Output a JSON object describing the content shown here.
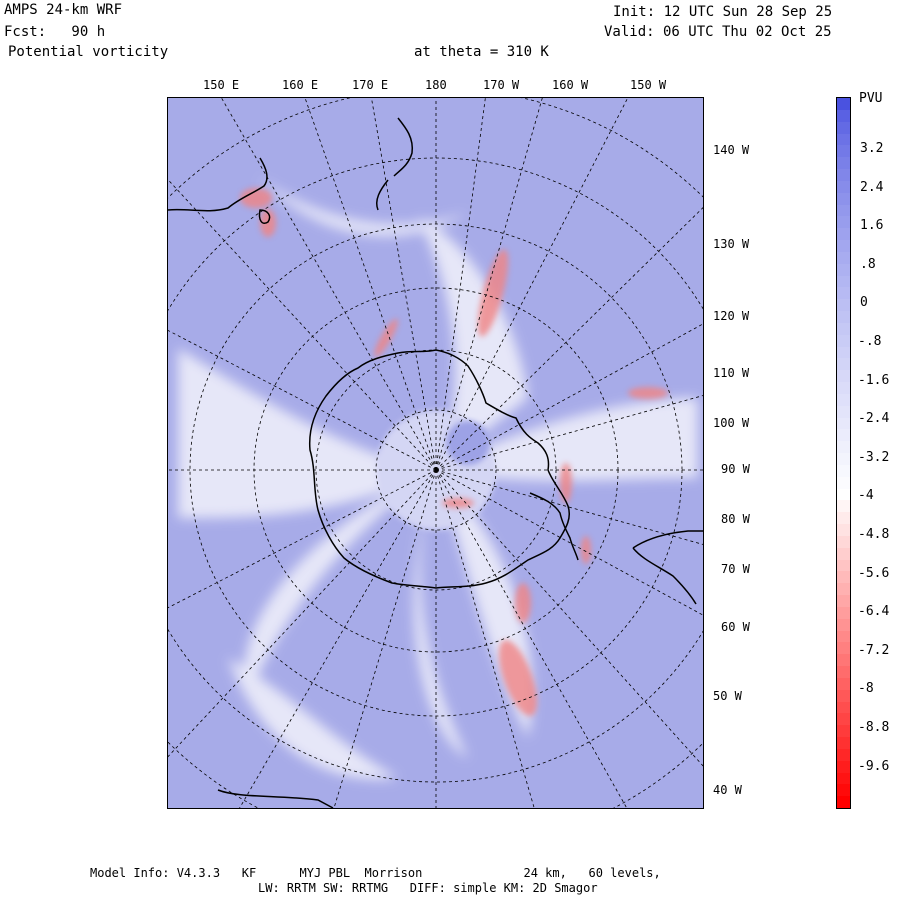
{
  "header": {
    "model": "AMPS 24-km WRF",
    "fcst": "Fcst:   90 h",
    "field": "Potential vorticity",
    "level": "at theta = 310 K",
    "init": "Init: 12 UTC Sun 28 Sep 25",
    "valid": "Valid: 06 UTC Thu 02 Oct 25"
  },
  "top_lon_labels": [
    "150 E",
    "160 E",
    "170 E",
    "180",
    "170 W",
    "160 W",
    "150 W"
  ],
  "right_lon_labels": [
    "140 W",
    "130 W",
    "120 W",
    "110 W",
    "100 W",
    "90 W",
    "80 W",
    "70 W",
    "60 W",
    "50 W",
    "40 W"
  ],
  "colorbar": {
    "unit": "PVU",
    "ticks": [
      "3.2",
      "2.4",
      "1.6",
      ".8",
      "0",
      "-.8",
      "-1.6",
      "-2.4",
      "-3.2",
      "-4",
      "-4.8",
      "-5.6",
      "-6.4",
      "-7.2",
      "-8",
      "-8.8",
      "-9.6"
    ],
    "top_color": "#4a52e0",
    "mid_color": "#ffffff",
    "bottom_color": "#ff0000"
  },
  "colors": {
    "background_field": "#a7abe8",
    "coastline": "#000000"
  },
  "footer": {
    "line1": "Model Info: V4.3.3   KF      MYJ PBL  Morrison              24 km,   60 levels,",
    "line2": "LW: RRTM SW: RRTMG   DIFF: simple KM: 2D Smagor"
  }
}
